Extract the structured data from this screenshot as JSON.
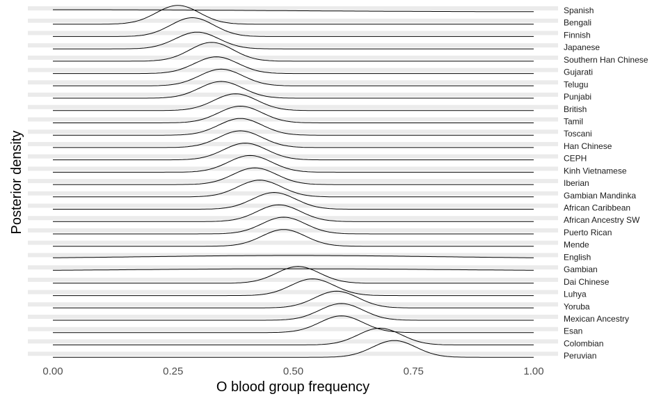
{
  "chart_data": {
    "type": "ridgeline",
    "xlabel": "O blood group frequency",
    "ylabel": "Posterior density",
    "xlim": [
      0,
      1
    ],
    "x_ticks": [
      "0.00",
      "0.25",
      "0.50",
      "0.75",
      "1.00"
    ],
    "x_tick_values": [
      0,
      0.25,
      0.5,
      0.75,
      1.0
    ],
    "grid": true,
    "series": [
      {
        "name": "Spanish",
        "mode": 0.05,
        "spread": 0.4,
        "peak": 0.1
      },
      {
        "name": "Bengali",
        "mode": 0.26,
        "spread": 0.045,
        "peak": 0.9
      },
      {
        "name": "Finnish",
        "mode": 0.29,
        "spread": 0.045,
        "peak": 0.9
      },
      {
        "name": "Japanese",
        "mode": 0.3,
        "spread": 0.045,
        "peak": 0.8
      },
      {
        "name": "Southern Han Chinese",
        "mode": 0.33,
        "spread": 0.045,
        "peak": 0.9
      },
      {
        "name": "Gujarati",
        "mode": 0.34,
        "spread": 0.045,
        "peak": 0.8
      },
      {
        "name": "Telugu",
        "mode": 0.35,
        "spread": 0.045,
        "peak": 0.8
      },
      {
        "name": "Punjabi",
        "mode": 0.35,
        "spread": 0.045,
        "peak": 0.8
      },
      {
        "name": "British",
        "mode": 0.38,
        "spread": 0.045,
        "peak": 0.8
      },
      {
        "name": "Tamil",
        "mode": 0.39,
        "spread": 0.045,
        "peak": 0.8
      },
      {
        "name": "Toscani",
        "mode": 0.39,
        "spread": 0.045,
        "peak": 0.8
      },
      {
        "name": "Han Chinese",
        "mode": 0.39,
        "spread": 0.045,
        "peak": 0.8
      },
      {
        "name": "CEPH",
        "mode": 0.4,
        "spread": 0.045,
        "peak": 0.8
      },
      {
        "name": "Kinh Vietnamese",
        "mode": 0.41,
        "spread": 0.045,
        "peak": 0.8
      },
      {
        "name": "Iberian",
        "mode": 0.42,
        "spread": 0.045,
        "peak": 0.8
      },
      {
        "name": "Gambian Mandinka",
        "mode": 0.43,
        "spread": 0.045,
        "peak": 0.8
      },
      {
        "name": "African Caribbean",
        "mode": 0.46,
        "spread": 0.045,
        "peak": 0.8
      },
      {
        "name": "African Ancestry SW",
        "mode": 0.47,
        "spread": 0.045,
        "peak": 0.8
      },
      {
        "name": "Puerto Rican",
        "mode": 0.48,
        "spread": 0.045,
        "peak": 0.8
      },
      {
        "name": "Mende",
        "mode": 0.48,
        "spread": 0.045,
        "peak": 0.8
      },
      {
        "name": "English",
        "mode": 0.5,
        "spread": 0.3,
        "peak": 0.15
      },
      {
        "name": "Gambian",
        "mode": 0.5,
        "spread": 0.32,
        "peak": 0.1
      },
      {
        "name": "Dai Chinese",
        "mode": 0.51,
        "spread": 0.045,
        "peak": 0.8
      },
      {
        "name": "Luhya",
        "mode": 0.54,
        "spread": 0.045,
        "peak": 0.8
      },
      {
        "name": "Yoruba",
        "mode": 0.59,
        "spread": 0.045,
        "peak": 0.8
      },
      {
        "name": "Mexican Ancestry",
        "mode": 0.6,
        "spread": 0.045,
        "peak": 0.8
      },
      {
        "name": "Esan",
        "mode": 0.6,
        "spread": 0.045,
        "peak": 0.8
      },
      {
        "name": "Colombian",
        "mode": 0.68,
        "spread": 0.045,
        "peak": 0.8
      },
      {
        "name": "Peruvian",
        "mode": 0.71,
        "spread": 0.045,
        "peak": 0.8
      }
    ]
  }
}
